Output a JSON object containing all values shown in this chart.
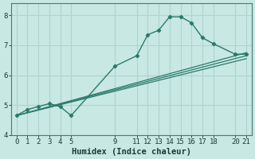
{
  "xlabel": "Humidex (Indice chaleur)",
  "ylabel": "",
  "bg_color": "#c8e8e4",
  "grid_color": "#aed4d0",
  "line_color": "#2a7a6a",
  "xlim": [
    -0.5,
    21.5
  ],
  "ylim": [
    4.0,
    8.4
  ],
  "yticks": [
    4,
    5,
    6,
    7,
    8
  ],
  "xticks": [
    0,
    1,
    2,
    3,
    4,
    5,
    9,
    11,
    12,
    13,
    14,
    15,
    16,
    17,
    18,
    20,
    21
  ],
  "lines": [
    {
      "x": [
        0,
        1,
        2,
        3,
        4,
        5,
        9,
        11,
        12,
        13,
        14,
        15,
        16,
        17,
        18,
        20,
        21
      ],
      "y": [
        4.65,
        4.85,
        4.95,
        5.05,
        4.95,
        4.65,
        6.3,
        6.65,
        7.35,
        7.5,
        7.95,
        7.95,
        7.75,
        7.25,
        7.05,
        6.7,
        6.7
      ],
      "marker": "D",
      "markersize": 2.2,
      "linewidth": 1.0,
      "has_marker": true
    },
    {
      "x": [
        0,
        21
      ],
      "y": [
        4.65,
        6.75
      ],
      "marker": null,
      "markersize": 0,
      "linewidth": 0.9,
      "has_marker": false
    },
    {
      "x": [
        0,
        21
      ],
      "y": [
        4.65,
        6.65
      ],
      "marker": null,
      "markersize": 0,
      "linewidth": 0.9,
      "has_marker": false
    },
    {
      "x": [
        0,
        21
      ],
      "y": [
        4.65,
        6.55
      ],
      "marker": null,
      "markersize": 0,
      "linewidth": 0.9,
      "has_marker": false
    }
  ]
}
